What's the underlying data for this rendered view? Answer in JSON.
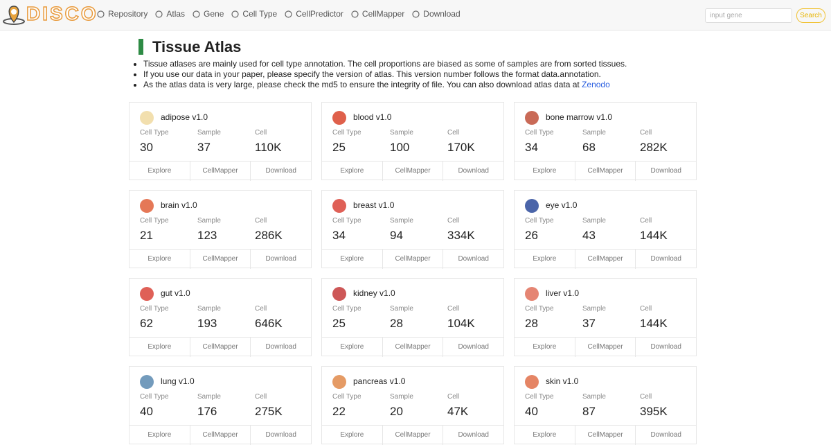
{
  "header": {
    "logo": "DISCO",
    "nav": [
      "Repository",
      "Atlas",
      "Gene",
      "Cell Type",
      "CellPredictor",
      "CellMapper",
      "Download"
    ],
    "search_placeholder": "input gene",
    "search_button": "Search"
  },
  "page": {
    "title": "Tissue Atlas",
    "notes": [
      "Tissue atlases are mainly used for cell type annotation. The cell proportions are biased as some of samples are from sorted tissues.",
      "If you use our data in your paper, please specify the version of atlas. This version number follows the format data.annotation.",
      "As the atlas data is very large, please check the md5 to ensure the integrity of file. You can also download atlas data at "
    ],
    "link": "Zenodo"
  },
  "stat_labels": [
    "Cell Type",
    "Sample",
    "Cell"
  ],
  "actions": [
    "Explore",
    "CellMapper",
    "Download"
  ],
  "cards": [
    {
      "name": "adipose v1.0",
      "stats": [
        30,
        37,
        "110K"
      ]
    },
    {
      "name": "blood v1.0",
      "stats": [
        25,
        100,
        "170K"
      ]
    },
    {
      "name": "bone marrow v1.0",
      "stats": [
        34,
        68,
        "282K"
      ]
    },
    {
      "name": "brain v1.0",
      "stats": [
        21,
        123,
        "286K"
      ]
    },
    {
      "name": "breast v1.0",
      "stats": [
        34,
        94,
        "334K"
      ]
    },
    {
      "name": "eye v1.0",
      "stats": [
        26,
        43,
        "144K"
      ]
    },
    {
      "name": "gut v1.0",
      "stats": [
        62,
        193,
        "646K"
      ]
    },
    {
      "name": "kidney v1.0",
      "stats": [
        25,
        28,
        "104K"
      ]
    },
    {
      "name": "liver v1.0",
      "stats": [
        28,
        37,
        "144K"
      ]
    },
    {
      "name": "lung v1.0",
      "stats": [
        40,
        176,
        "275K"
      ]
    },
    {
      "name": "pancreas v1.0",
      "stats": [
        22,
        20,
        "47K"
      ]
    },
    {
      "name": "skin v1.0",
      "stats": [
        40,
        87,
        "395K"
      ]
    }
  ]
}
